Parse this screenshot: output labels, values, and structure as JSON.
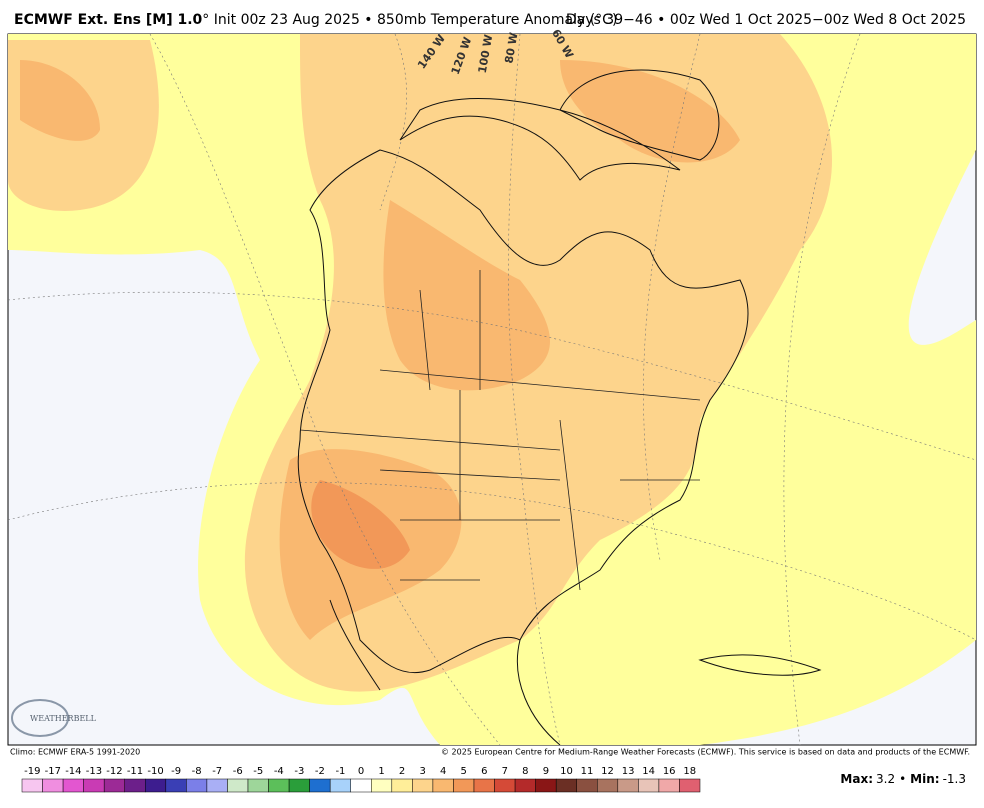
{
  "header": {
    "title_bold": "ECMWF Ext. Ens [M] 1.0",
    "title_rest": "° Init 00z 23 Aug 2025 • 850mb Temperature Anomaly (°C)",
    "valid": "Days 39−46 • 00z Wed 1 Oct 2025−00z Wed 8 Oct 2025"
  },
  "map": {
    "longitude_labels": [
      "140 W",
      "120 W",
      "100 W",
      "80 W",
      "60 W"
    ],
    "logo": "WEATHERBELL"
  },
  "footer": {
    "climo": "Climo: ECMWF ERA-5 1991-2020",
    "copyright": "© 2025 European Centre for Medium-Range Weather Forecasts (ECMWF). This service is based on data and products of the ECMWF.",
    "max": {
      "label": "Max:",
      "value": 3.2
    },
    "separator": "•",
    "min": {
      "label": "Min:",
      "value": -1.3
    }
  },
  "colorbar": {
    "labels": [
      -19,
      -17,
      -14,
      -13,
      -12,
      -11,
      -10,
      -9,
      -8,
      -7,
      -6,
      -5,
      -4,
      -3,
      -2,
      -1,
      0,
      1,
      2,
      3,
      4,
      5,
      6,
      7,
      8,
      9,
      10,
      11,
      12,
      13,
      14,
      16,
      18
    ],
    "colors": [
      "#f7c6f0",
      "#f08ee0",
      "#e356d0",
      "#c93bb4",
      "#9c2a96",
      "#6c1f8a",
      "#3d1d8f",
      "#3a3fb5",
      "#7b7fe8",
      "#a9aff5",
      "#cfe9c9",
      "#9ed69a",
      "#5cbf5a",
      "#2a9e3a",
      "#1e6fd0",
      "#a8d2fa",
      "#ffffff",
      "#ffffc0",
      "#ffee99",
      "#fdd48c",
      "#f9b870",
      "#f29858",
      "#e87448",
      "#d54a37",
      "#b42a2a",
      "#8a1616",
      "#6b2f24",
      "#8a5040",
      "#a8735f",
      "#c99a88",
      "#e8c4b8",
      "#f0a8a8",
      "#e06070"
    ]
  }
}
